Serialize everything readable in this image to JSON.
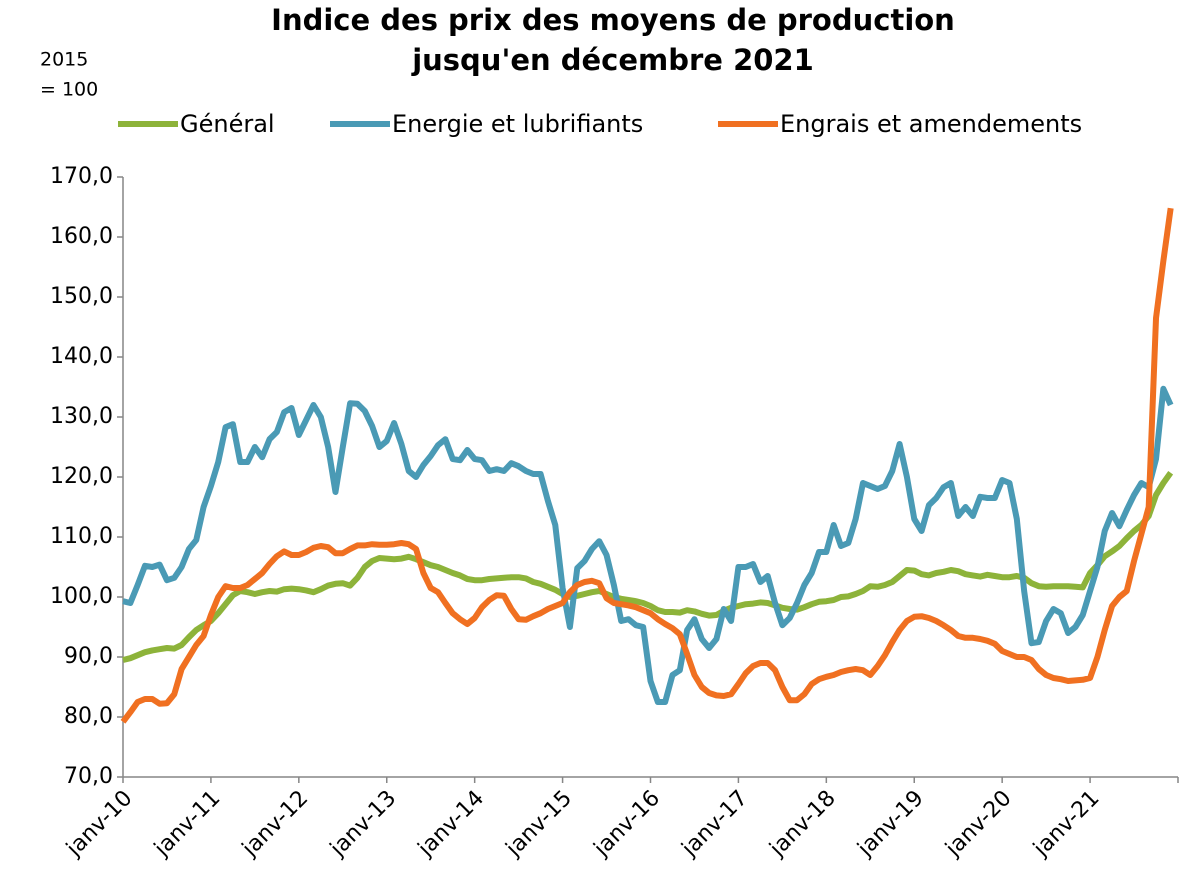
{
  "chart_data": {
    "type": "line",
    "title": [
      "Indice des prix des moyens de production",
      "jusqu'en décembre 2021"
    ],
    "ylabel": [
      "2015",
      "= 100"
    ],
    "legend": "top",
    "grid": false,
    "categories": [
      "janv-10",
      null,
      null,
      null,
      null,
      null,
      null,
      null,
      null,
      null,
      null,
      null,
      "janv-11",
      null,
      null,
      null,
      null,
      null,
      null,
      null,
      null,
      null,
      null,
      null,
      "janv-12",
      null,
      null,
      null,
      null,
      null,
      null,
      null,
      null,
      null,
      null,
      null,
      "janv-13",
      null,
      null,
      null,
      null,
      null,
      null,
      null,
      null,
      null,
      null,
      null,
      "janv-14",
      null,
      null,
      null,
      null,
      null,
      null,
      null,
      null,
      null,
      null,
      null,
      "janv-15",
      null,
      null,
      null,
      null,
      null,
      null,
      null,
      null,
      null,
      null,
      null,
      "janv-16",
      null,
      null,
      null,
      null,
      null,
      null,
      null,
      null,
      null,
      null,
      null,
      "janv-17",
      null,
      null,
      null,
      null,
      null,
      null,
      null,
      null,
      null,
      null,
      null,
      "janv-18",
      null,
      null,
      null,
      null,
      null,
      null,
      null,
      null,
      null,
      null,
      null,
      "janv-19",
      null,
      null,
      null,
      null,
      null,
      null,
      null,
      null,
      null,
      null,
      null,
      "janv-20",
      null,
      null,
      null,
      null,
      null,
      null,
      null,
      null,
      null,
      null,
      null,
      "janv-21",
      null,
      null,
      null,
      null,
      null,
      null,
      null,
      null,
      null,
      null,
      null
    ],
    "ylim": [
      70,
      170
    ],
    "yticks": [
      {
        "value": 70,
        "label": "70,0"
      },
      {
        "value": 80,
        "label": "80,0"
      },
      {
        "value": 90,
        "label": "90,0"
      },
      {
        "value": 100,
        "label": "100,0"
      },
      {
        "value": 110,
        "label": "110,0"
      },
      {
        "value": 120,
        "label": "120,0"
      },
      {
        "value": 130,
        "label": "130,0"
      },
      {
        "value": 140,
        "label": "140,0"
      },
      {
        "value": 150,
        "label": "150,0"
      },
      {
        "value": 160,
        "label": "160,0"
      },
      {
        "value": 170,
        "label": "170,0"
      }
    ],
    "series": [
      {
        "name": "Général",
        "color": "#8db33a",
        "values": [
          89.5,
          89.8,
          90.3,
          90.8,
          91.1,
          91.3,
          91.5,
          91.4,
          92.0,
          93.3,
          94.5,
          95.3,
          96.0,
          97.3,
          98.8,
          100.3,
          101.0,
          100.8,
          100.5,
          100.8,
          101.0,
          100.9,
          101.3,
          101.4,
          101.3,
          101.1,
          100.8,
          101.3,
          101.9,
          102.2,
          102.3,
          101.9,
          103.2,
          105.0,
          106.0,
          106.5,
          106.4,
          106.3,
          106.4,
          106.7,
          106.3,
          105.8,
          105.3,
          105.0,
          104.5,
          104.0,
          103.6,
          103.0,
          102.8,
          102.8,
          103.0,
          103.1,
          103.2,
          103.3,
          103.3,
          103.1,
          102.5,
          102.2,
          101.7,
          101.2,
          100.5,
          100.0,
          100.2,
          100.5,
          100.8,
          101.0,
          100.5,
          100.0,
          99.7,
          99.5,
          99.3,
          99.0,
          98.5,
          97.8,
          97.5,
          97.5,
          97.4,
          97.8,
          97.6,
          97.2,
          96.9,
          97.0,
          97.7,
          98.2,
          98.5,
          98.8,
          98.9,
          99.1,
          99.0,
          98.6,
          98.2,
          98.0,
          97.9,
          98.3,
          98.8,
          99.2,
          99.3,
          99.5,
          100.0,
          100.1,
          100.5,
          101.0,
          101.8,
          101.7,
          102.0,
          102.5,
          103.5,
          104.5,
          104.4,
          103.8,
          103.6,
          104.0,
          104.2,
          104.5,
          104.3,
          103.8,
          103.6,
          103.4,
          103.7,
          103.5,
          103.3,
          103.3,
          103.5,
          103.2,
          102.3,
          101.8,
          101.7,
          101.8,
          101.8,
          101.8,
          101.7,
          101.6,
          104.0,
          105.3,
          106.8,
          107.6,
          108.5,
          109.8,
          111.0,
          112.0,
          113.5,
          117.0,
          119.0,
          120.7
        ]
      },
      {
        "name": "Energie et lubrifiants",
        "color": "#4a9ab5",
        "values": [
          99.3,
          99.0,
          102.0,
          105.2,
          105.0,
          105.4,
          102.8,
          103.2,
          105.0,
          108.0,
          109.5,
          115.0,
          118.5,
          122.5,
          128.3,
          128.8,
          122.5,
          122.5,
          125.0,
          123.3,
          126.3,
          127.5,
          130.8,
          131.5,
          127.0,
          129.5,
          132.0,
          130.0,
          125.0,
          117.5,
          125.0,
          132.3,
          132.2,
          131.0,
          128.5,
          125.0,
          126.0,
          129.0,
          125.5,
          121.0,
          120.0,
          122.0,
          123.5,
          125.3,
          126.3,
          123.0,
          122.8,
          124.5,
          123.0,
          122.8,
          121.0,
          121.3,
          121.0,
          122.3,
          121.8,
          121.0,
          120.5,
          120.5,
          116.0,
          112.0,
          101.5,
          95.0,
          104.8,
          106.0,
          108.0,
          109.3,
          107.0,
          102.0,
          96.0,
          96.3,
          95.3,
          95.0,
          86.0,
          82.5,
          82.5,
          87.0,
          87.8,
          94.5,
          96.3,
          93.0,
          91.5,
          93.0,
          98.0,
          96.0,
          105.0,
          105.0,
          105.5,
          102.5,
          103.5,
          99.0,
          95.3,
          96.5,
          99.0,
          102.0,
          104.0,
          107.5,
          107.5,
          112.0,
          108.5,
          109.0,
          113.0,
          119.0,
          118.5,
          118.0,
          118.5,
          121.0,
          125.5,
          120.0,
          113.0,
          111.0,
          115.3,
          116.5,
          118.3,
          119.0,
          113.5,
          115.0,
          113.5,
          116.7,
          116.5,
          116.5,
          119.5,
          119.0,
          113.0,
          101.0,
          92.3,
          92.5,
          96.0,
          98.0,
          97.3,
          94.0,
          95.0,
          97.0,
          101.0,
          105.0,
          111.0,
          114.0,
          111.8,
          114.5,
          117.0,
          119.0,
          118.3,
          123.0,
          134.7,
          132.0
        ]
      },
      {
        "name": "Engrais et amendements",
        "color": "#f07021",
        "values": [
          79.2,
          80.8,
          82.5,
          83.0,
          83.0,
          82.2,
          82.3,
          83.8,
          88.0,
          90.0,
          92.0,
          93.5,
          97.0,
          100.0,
          101.8,
          101.5,
          101.5,
          102.0,
          103.0,
          104.0,
          105.5,
          106.8,
          107.6,
          107.0,
          107.0,
          107.5,
          108.2,
          108.5,
          108.3,
          107.3,
          107.3,
          108.0,
          108.6,
          108.6,
          108.8,
          108.7,
          108.7,
          108.8,
          109.0,
          108.8,
          108.0,
          104.0,
          101.5,
          100.8,
          99.0,
          97.3,
          96.3,
          95.5,
          96.5,
          98.3,
          99.5,
          100.3,
          100.2,
          98.0,
          96.3,
          96.2,
          96.8,
          97.3,
          98.0,
          98.5,
          99.0,
          100.8,
          102.0,
          102.5,
          102.7,
          102.3,
          99.8,
          99.0,
          98.8,
          98.6,
          98.3,
          97.8,
          97.3,
          96.3,
          95.5,
          94.8,
          93.8,
          90.5,
          87.0,
          85.0,
          84.0,
          83.6,
          83.5,
          83.8,
          85.5,
          87.3,
          88.5,
          89.0,
          89.0,
          87.8,
          85.0,
          82.8,
          82.8,
          83.8,
          85.5,
          86.3,
          86.7,
          87.0,
          87.5,
          87.8,
          88.0,
          87.8,
          87.0,
          88.5,
          90.3,
          92.5,
          94.5,
          96.0,
          96.7,
          96.8,
          96.5,
          96.0,
          95.3,
          94.5,
          93.5,
          93.2,
          93.2,
          93.0,
          92.7,
          92.2,
          91.0,
          90.5,
          90.0,
          90.0,
          89.5,
          88.0,
          87.0,
          86.5,
          86.3,
          86.0,
          86.1,
          86.2,
          86.5,
          90.0,
          94.5,
          98.5,
          100.0,
          101.0,
          106.0,
          110.5,
          115.0,
          146.5,
          156.0,
          164.8
        ]
      }
    ]
  }
}
